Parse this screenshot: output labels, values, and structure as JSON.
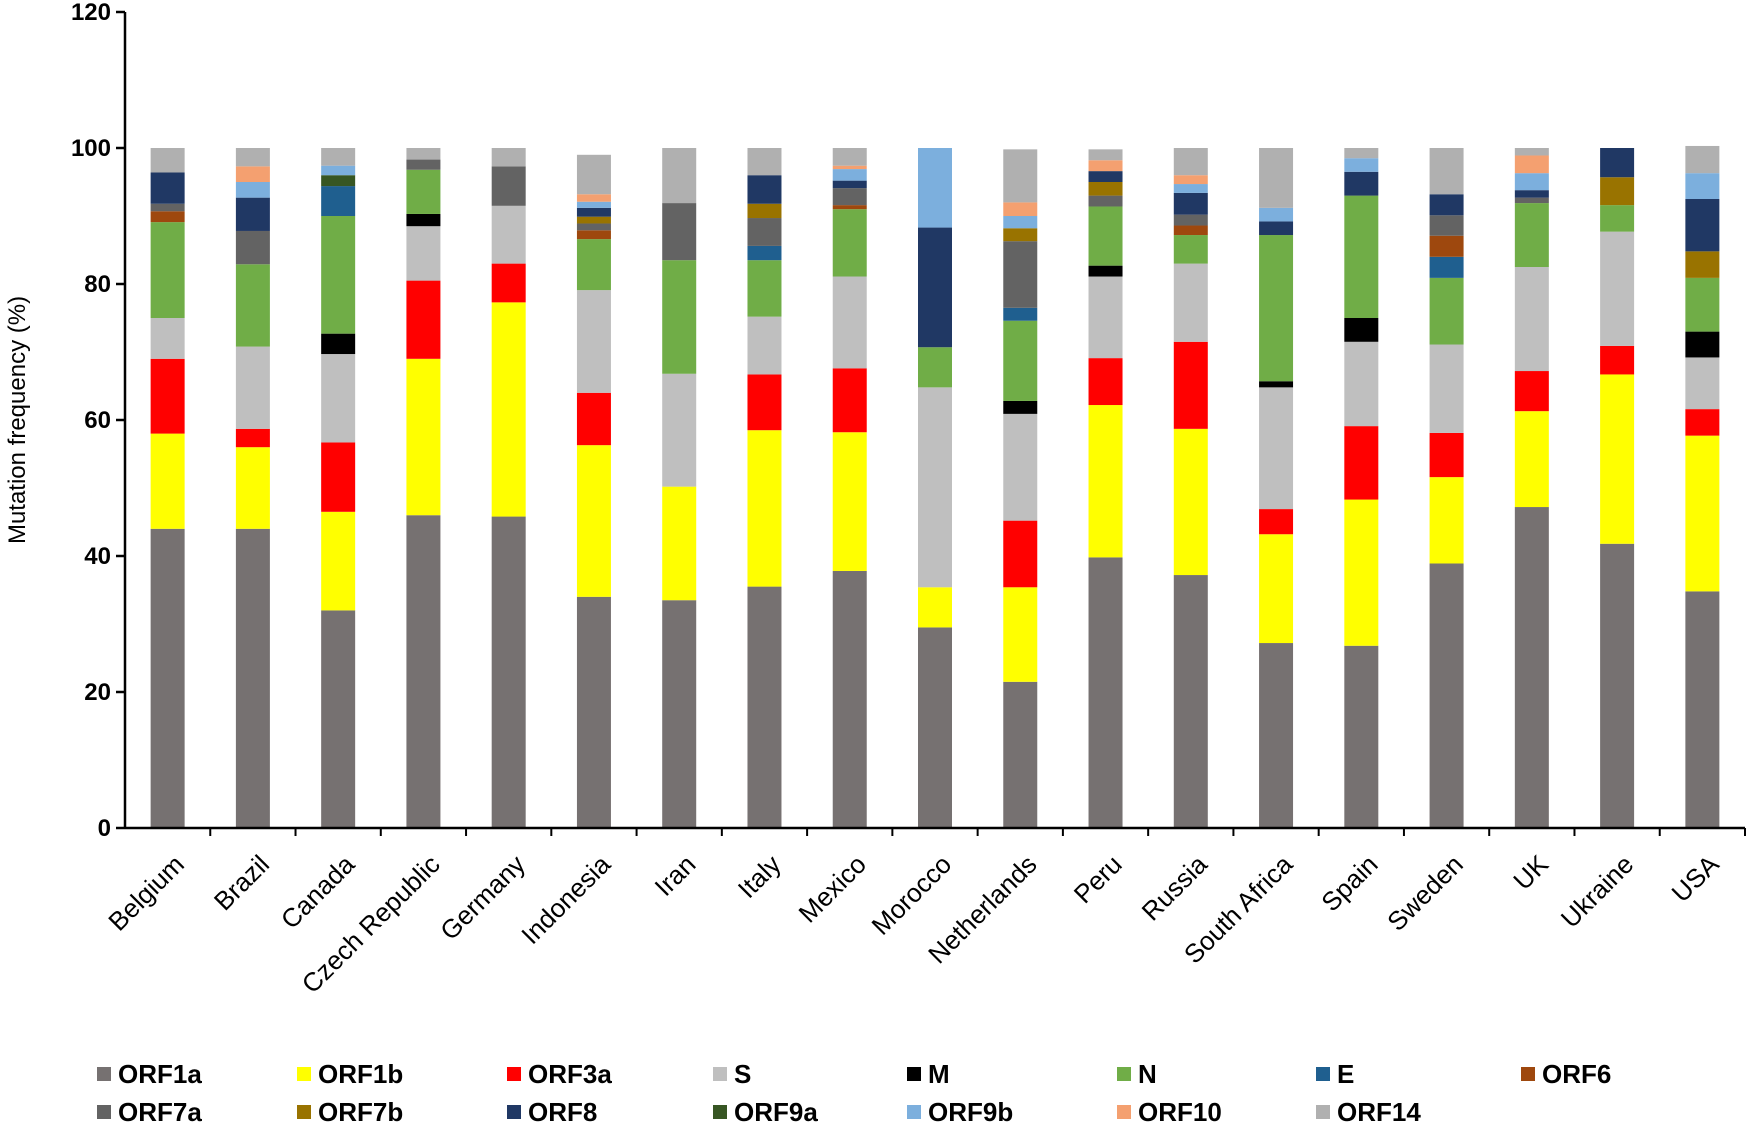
{
  "chart_data": {
    "type": "bar",
    "stacked": true,
    "title": "",
    "xlabel": "",
    "ylabel": "Mutation frequency (%)",
    "ylim": [
      0,
      120
    ],
    "yticks": [
      0,
      20,
      40,
      60,
      80,
      100,
      120
    ],
    "legend_position": "bottom",
    "categories": [
      "Belgium",
      "Brazil",
      "Canada",
      "Czech Republic",
      "Germany",
      "Indonesia",
      "Iran",
      "Italy",
      "Mexico",
      "Morocco",
      "Netherlands",
      "Peru",
      "Russia",
      "South Africa",
      "Spain",
      "Sweden",
      "UK",
      "Ukraine",
      "USA"
    ],
    "series": [
      {
        "name": "ORF1a",
        "color": "#767171",
        "values": [
          44,
          44,
          32,
          46,
          45.8,
          34,
          33.5,
          35.5,
          37.8,
          29.5,
          21.5,
          39.8,
          37.2,
          27.2,
          26.8,
          38.9,
          47.2,
          41.8,
          34.8
        ]
      },
      {
        "name": "ORF1b",
        "color": "#FFFF00",
        "values": [
          14,
          12,
          14.5,
          23,
          31.5,
          22.3,
          16.7,
          23,
          20.4,
          5.9,
          13.9,
          22.4,
          21.5,
          16,
          21.5,
          12.7,
          14.1,
          24.9,
          22.9
        ]
      },
      {
        "name": "ORF3a",
        "color": "#FF0000",
        "values": [
          11,
          2.7,
          10.2,
          11.5,
          5.7,
          7.7,
          0,
          8.2,
          9.4,
          0,
          9.8,
          6.9,
          12.8,
          3.7,
          10.8,
          6.5,
          5.9,
          4.2,
          3.9
        ]
      },
      {
        "name": "S",
        "color": "#BFBFBF",
        "values": [
          6,
          12.1,
          13,
          8,
          8.5,
          15.1,
          16.6,
          8.5,
          13.5,
          29.4,
          15.7,
          12,
          11.5,
          17.9,
          12.4,
          13,
          15.3,
          16.8,
          7.6
        ]
      },
      {
        "name": "M",
        "color": "#000000",
        "values": [
          0,
          0,
          3,
          1.8,
          0,
          0,
          0,
          0,
          0,
          0,
          1.9,
          1.6,
          0,
          0.9,
          3.5,
          0,
          0,
          0,
          3.8
        ]
      },
      {
        "name": "N",
        "color": "#70AD47",
        "values": [
          14.1,
          12.1,
          17.3,
          6.5,
          0,
          7.5,
          16.7,
          8.3,
          9.9,
          5.9,
          11.8,
          8.7,
          4.2,
          21.5,
          18,
          9.8,
          9.4,
          3.9,
          7.9
        ]
      },
      {
        "name": "E",
        "color": "#1F5F8F",
        "values": [
          0,
          0,
          4.4,
          0,
          0,
          0,
          0,
          2.1,
          0,
          0,
          1.9,
          0,
          0,
          0,
          0,
          3.1,
          0,
          0,
          0
        ]
      },
      {
        "name": "ORF6",
        "color": "#9E480E",
        "values": [
          1.6,
          0,
          0,
          0,
          0,
          1.3,
          0,
          0,
          0.6,
          0,
          0,
          0,
          1.4,
          0,
          0,
          3.1,
          0,
          0,
          0
        ]
      },
      {
        "name": "ORF7a",
        "color": "#636363",
        "values": [
          1.1,
          4.9,
          0,
          1.5,
          5.8,
          1,
          8.4,
          4.1,
          2.5,
          0,
          9.8,
          1.6,
          1.6,
          0,
          0,
          3,
          0.8,
          0,
          0
        ]
      },
      {
        "name": "ORF7b",
        "color": "#997300",
        "values": [
          0,
          0,
          0,
          0,
          0,
          1,
          0,
          2.1,
          0,
          0,
          1.9,
          2,
          0,
          0,
          0,
          0,
          0,
          4.1,
          3.9
        ]
      },
      {
        "name": "ORF8",
        "color": "#203864",
        "values": [
          4.6,
          4.9,
          0,
          0,
          0,
          1.3,
          0,
          4.2,
          1.1,
          17.6,
          0,
          1.6,
          3.2,
          2,
          3.5,
          3.1,
          1.1,
          4.3,
          7.7
        ]
      },
      {
        "name": "ORF9a",
        "color": "#375623",
        "values": [
          0,
          0,
          1.6,
          0,
          0,
          0,
          0,
          0,
          0,
          0,
          0,
          0,
          0,
          0,
          0,
          0,
          0,
          0,
          0
        ]
      },
      {
        "name": "ORF9b",
        "color": "#7CAFDD",
        "values": [
          0,
          2.3,
          1.4,
          0,
          0,
          0.9,
          0,
          0,
          1.7,
          11.7,
          1.8,
          0,
          1.3,
          2,
          2,
          0,
          2.5,
          0,
          3.8
        ]
      },
      {
        "name": "ORF10",
        "color": "#F4A070",
        "values": [
          0,
          2.3,
          0,
          0,
          0,
          1.1,
          0,
          0,
          0.5,
          0,
          2,
          1.6,
          1.3,
          0,
          0,
          0,
          2.6,
          0,
          0
        ]
      },
      {
        "name": "ORF14",
        "color": "#B0B0B0",
        "values": [
          3.6,
          2.7,
          2.6,
          1.7,
          2.7,
          5.8,
          8.1,
          4,
          2.6,
          0,
          7.8,
          1.6,
          4,
          8.8,
          1.5,
          6.8,
          1.1,
          0,
          4
        ]
      }
    ]
  }
}
